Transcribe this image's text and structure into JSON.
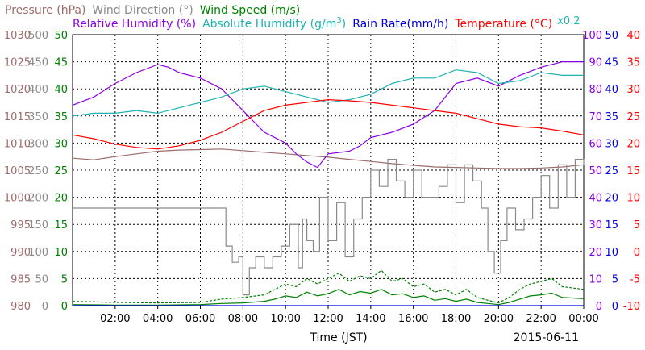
{
  "chart_data": {
    "type": "line",
    "date_label": "2015-06-11",
    "xlabel": "Time (JST)",
    "x_ticks": [
      "02:00",
      "04:00",
      "06:00",
      "08:00",
      "10:00",
      "12:00",
      "14:00",
      "16:00",
      "18:00",
      "20:00",
      "22:00",
      "00:00"
    ],
    "x_range_hours": [
      0,
      24
    ],
    "legend_row1": [
      {
        "name": "Pressure (hPa)",
        "color": "#9c6b6b"
      },
      {
        "name": "Wind Direction (°)",
        "color": "#8a8a8a"
      },
      {
        "name": "Wind Speed (m/s)",
        "color": "#008000"
      }
    ],
    "legend_row2": [
      {
        "name": "Relative Humidity (%)",
        "color": "#8a00e6"
      },
      {
        "name": "Absolute Humidity (g/m",
        "sup": "3",
        "tail": ")",
        "color": "#20b2b2"
      },
      {
        "name": "Rain Rate(mm/h)",
        "color": "#0000dd"
      },
      {
        "name": "Temperature (°C)",
        "color": "#ff0000"
      }
    ],
    "abs_humidity_scale_note": "x0.2",
    "axes": {
      "pressure": {
        "color": "#9c6b6b",
        "range": [
          980,
          1030
        ],
        "ticks": [
          980,
          985,
          990,
          995,
          1000,
          1005,
          1010,
          1015,
          1020,
          1025,
          1030
        ]
      },
      "wind_direction": {
        "color": "#8a8a8a",
        "range": [
          0,
          500
        ],
        "ticks": [
          0,
          50,
          100,
          150,
          200,
          250,
          300,
          350,
          400,
          450,
          500
        ]
      },
      "wind_speed": {
        "color": "#008000",
        "range": [
          0,
          50
        ],
        "ticks": [
          0,
          5,
          10,
          15,
          20,
          25,
          30,
          35,
          40,
          45,
          50
        ]
      },
      "humidity": {
        "color": "#8a00e6",
        "range": [
          0,
          100
        ],
        "ticks": [
          0,
          10,
          20,
          30,
          40,
          50,
          60,
          70,
          80,
          90,
          100
        ]
      },
      "rain_rate": {
        "color": "#0000dd",
        "range": [
          0,
          50
        ],
        "ticks": [
          0,
          5,
          10,
          15,
          20,
          25,
          30,
          35,
          40,
          45,
          50
        ]
      },
      "temperature": {
        "color": "#ff0000",
        "range": [
          -10,
          40
        ],
        "ticks": [
          -10,
          -5,
          0,
          5,
          10,
          15,
          20,
          25,
          30,
          35,
          40
        ]
      }
    },
    "series": [
      {
        "name": "Pressure (hPa)",
        "axis": "pressure",
        "color": "#9c6b6b",
        "x": [
          0,
          1,
          2,
          3,
          4,
          5,
          6,
          7,
          8,
          9,
          10,
          11,
          12,
          13,
          14,
          15,
          16,
          17,
          18,
          19,
          20,
          21,
          22,
          23,
          24
        ],
        "y": [
          1007.2,
          1006.9,
          1007.5,
          1008.0,
          1008.5,
          1008.7,
          1008.8,
          1008.9,
          1008.6,
          1008.3,
          1008.0,
          1007.7,
          1007.4,
          1007.0,
          1006.6,
          1006.2,
          1005.9,
          1005.6,
          1005.5,
          1005.4,
          1005.3,
          1005.3,
          1005.4,
          1005.6,
          1006.0
        ]
      },
      {
        "name": "Relative Humidity (%)",
        "axis": "humidity",
        "color": "#8a00e6",
        "x": [
          0,
          1,
          2,
          3,
          4,
          4.5,
          5,
          6,
          7,
          7.5,
          8,
          8.5,
          9,
          9.5,
          10,
          10.5,
          11,
          11.5,
          12,
          13,
          13.5,
          14,
          15,
          16,
          17,
          17.5,
          18,
          19,
          20,
          21,
          22,
          23,
          24
        ],
        "y": [
          74,
          77,
          82,
          86,
          89,
          88,
          86,
          84,
          80,
          76,
          72,
          68,
          64,
          62,
          60,
          56,
          53,
          51,
          56,
          57,
          59,
          62,
          64,
          67,
          72,
          77,
          82,
          84,
          81,
          85,
          88,
          90,
          90
        ]
      },
      {
        "name": "Absolute Humidity (g/m3)",
        "axis": "humidity",
        "color": "#20b2b2",
        "x": [
          0,
          1,
          2,
          3,
          4,
          5,
          6,
          7,
          8,
          9,
          10,
          11,
          12,
          13,
          14,
          15,
          16,
          17,
          18,
          19,
          20,
          21,
          22,
          23,
          24
        ],
        "y": [
          70,
          71,
          71,
          72,
          71,
          73,
          75,
          77,
          80,
          81,
          79,
          77,
          75,
          76,
          78,
          82,
          84,
          84,
          87,
          86,
          82,
          83,
          86,
          85,
          85
        ]
      },
      {
        "name": "Temperature (°C)",
        "axis": "temperature",
        "color": "#ff0000",
        "x": [
          0,
          1,
          2,
          3,
          4,
          5,
          6,
          7,
          8,
          9,
          10,
          11,
          12,
          13,
          14,
          15,
          16,
          17,
          18,
          19,
          20,
          21,
          22,
          23,
          24
        ],
        "y": [
          21.5,
          20.8,
          19.8,
          19.2,
          18.9,
          19.5,
          20.5,
          22,
          24,
          26,
          27,
          27.5,
          28,
          27.8,
          27.5,
          27,
          26.5,
          26,
          25.5,
          24.5,
          23.5,
          23,
          22.8,
          22.2,
          21.5
        ]
      },
      {
        "name": "Wind Direction (°)",
        "axis": "wind_direction",
        "color": "#8a8a8a",
        "step": true,
        "x": [
          0,
          6.9,
          7.2,
          7.5,
          7.8,
          8.0,
          8.3,
          8.6,
          9.0,
          9.4,
          9.8,
          10.2,
          10.6,
          10.8,
          11.0,
          11.3,
          11.6,
          12.0,
          12.4,
          12.8,
          13.2,
          13.6,
          14.0,
          14.4,
          14.8,
          15.2,
          15.6,
          16.0,
          16.4,
          16.8,
          17.2,
          17.6,
          18.0,
          18.4,
          18.8,
          19.2,
          19.5,
          19.8,
          20.1,
          20.4,
          20.8,
          21.2,
          21.6,
          22.0,
          22.4,
          22.8,
          23.2,
          23.6,
          24
        ],
        "y": [
          180,
          180,
          110,
          80,
          90,
          20,
          70,
          90,
          70,
          90,
          110,
          150,
          70,
          160,
          120,
          100,
          200,
          120,
          190,
          90,
          160,
          200,
          250,
          220,
          270,
          230,
          200,
          250,
          200,
          200,
          220,
          260,
          190,
          260,
          230,
          180,
          100,
          60,
          120,
          180,
          140,
          160,
          200,
          240,
          180,
          260,
          200,
          270,
          260
        ]
      },
      {
        "name": "Wind Speed max (m/s)",
        "axis": "wind_speed",
        "color": "#008000",
        "dashed": true,
        "x": [
          0,
          2,
          4,
          6,
          7,
          8,
          9,
          9.5,
          10,
          10.5,
          11,
          11.5,
          12,
          12.5,
          13,
          13.5,
          14,
          14.5,
          15,
          15.5,
          16,
          16.5,
          17,
          17.5,
          18,
          18.5,
          19,
          19.5,
          20,
          20.5,
          21,
          21.5,
          22,
          22.5,
          23,
          24
        ],
        "y": [
          0.8,
          0.6,
          0.5,
          0.6,
          1.2,
          1.5,
          2,
          3,
          4,
          3.5,
          5,
          4,
          5,
          6,
          4.5,
          5.5,
          5,
          6.5,
          4.5,
          5,
          3.5,
          4,
          2.5,
          3,
          2,
          3,
          1.5,
          1,
          0.5,
          1.5,
          3,
          4,
          4.5,
          5,
          3.5,
          3
        ]
      },
      {
        "name": "Wind Speed (m/s)",
        "axis": "wind_speed",
        "color": "#008000",
        "x": [
          0,
          2,
          4,
          6,
          7,
          8,
          9,
          9.5,
          10,
          10.5,
          11,
          11.5,
          12,
          12.5,
          13,
          13.5,
          14,
          14.5,
          15,
          15.5,
          16,
          16.5,
          17,
          17.5,
          18,
          18.5,
          19,
          19.5,
          20,
          20.5,
          21,
          21.5,
          22,
          22.5,
          23,
          24
        ],
        "y": [
          0.2,
          0.1,
          0.1,
          0.2,
          0.4,
          0.5,
          0.8,
          1.2,
          1.8,
          1.5,
          2.5,
          1.8,
          2.2,
          3,
          2,
          2.6,
          2.3,
          3,
          2,
          2.2,
          1.5,
          1.8,
          1,
          1.3,
          0.8,
          1.2,
          0.6,
          0.4,
          0.2,
          0.6,
          1.2,
          1.8,
          2,
          2.3,
          1.5,
          1.3
        ]
      },
      {
        "name": "Rain Rate(mm/h)",
        "axis": "rain_rate",
        "color": "#0000dd",
        "x": [
          0,
          24
        ],
        "y": [
          0,
          0
        ]
      }
    ],
    "grid": true
  }
}
